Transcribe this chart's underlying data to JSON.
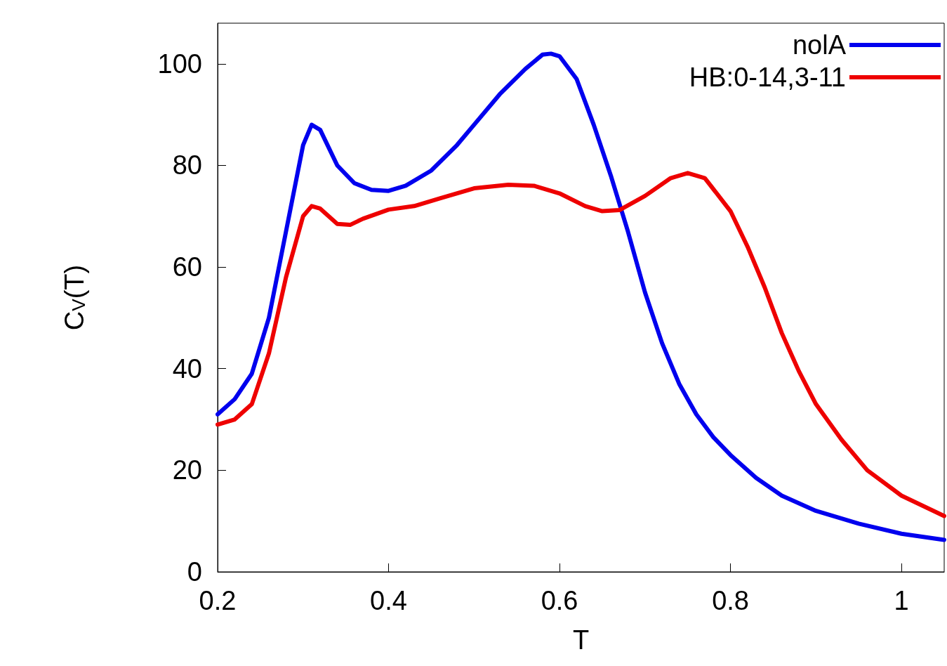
{
  "chart_data": {
    "type": "line",
    "xlabel": "T",
    "ylabel": "C$_{V}$(T)",
    "xlim": [
      0.2,
      1.05
    ],
    "xticks": [
      0.2,
      0.4,
      0.6,
      0.8,
      1
    ],
    "ylim": [
      0,
      108
    ],
    "yticks": [
      0,
      20,
      40,
      60,
      80,
      100
    ],
    "grid": false,
    "legend": "top right",
    "marker": "none",
    "line_style": "solid",
    "series": [
      {
        "name": "nolA",
        "color": "#0000ee",
        "x": [
          0.2,
          0.22,
          0.24,
          0.26,
          0.28,
          0.3,
          0.31,
          0.32,
          0.34,
          0.36,
          0.38,
          0.4,
          0.42,
          0.45,
          0.48,
          0.5,
          0.53,
          0.56,
          0.58,
          0.59,
          0.6,
          0.62,
          0.64,
          0.66,
          0.68,
          0.7,
          0.72,
          0.74,
          0.76,
          0.78,
          0.8,
          0.83,
          0.86,
          0.9,
          0.95,
          1.0,
          1.05
        ],
        "values": [
          31,
          34,
          39,
          50,
          67,
          84,
          88,
          87,
          80,
          76.5,
          75.2,
          75,
          76,
          79,
          84,
          88,
          94,
          99,
          101.8,
          102,
          101.5,
          97,
          88,
          78,
          67,
          55,
          45,
          37,
          31,
          26.5,
          23,
          18.5,
          15,
          12,
          9.5,
          7.5,
          6.3
        ]
      },
      {
        "name": "HB:0-14,3-11",
        "color": "#ee0000",
        "x": [
          0.2,
          0.22,
          0.24,
          0.26,
          0.28,
          0.3,
          0.31,
          0.32,
          0.34,
          0.355,
          0.37,
          0.4,
          0.43,
          0.46,
          0.5,
          0.54,
          0.57,
          0.6,
          0.63,
          0.65,
          0.67,
          0.7,
          0.73,
          0.75,
          0.77,
          0.8,
          0.82,
          0.84,
          0.86,
          0.88,
          0.9,
          0.93,
          0.96,
          1.0,
          1.05
        ],
        "values": [
          29,
          30,
          33,
          43,
          58,
          70,
          72,
          71.5,
          68.5,
          68.3,
          69.5,
          71.3,
          72,
          73.5,
          75.5,
          76.2,
          76,
          74.5,
          72,
          71,
          71.2,
          74,
          77.5,
          78.5,
          77.5,
          71,
          64,
          56,
          47,
          39.5,
          33,
          26,
          20,
          15,
          11
        ]
      }
    ]
  }
}
